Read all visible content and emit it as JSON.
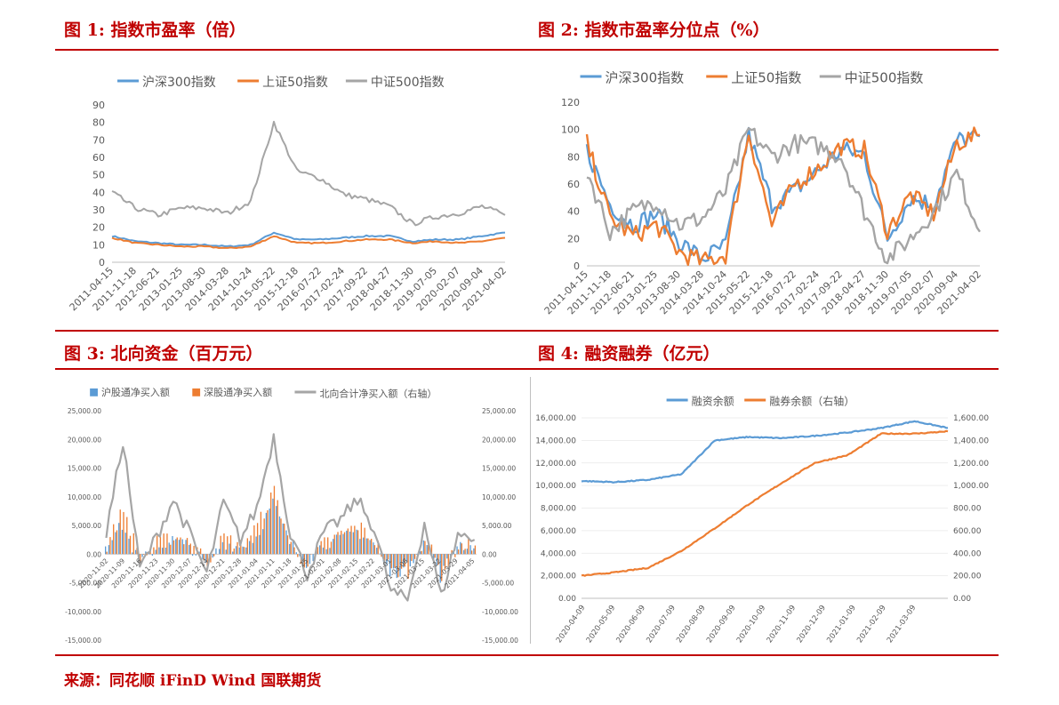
{
  "panels": [
    {
      "title": "图 1:  指数市盈率（倍）"
    },
    {
      "title": "图 2:  指数市盈率分位点（%）"
    },
    {
      "title": "图 3:  北向资金（百万元）"
    },
    {
      "title": "图 4:  融资融券（亿元）"
    }
  ],
  "source": "来源：同花顺 iFinD Wind 国联期货",
  "colors": {
    "blue": "#5b9bd5",
    "orange": "#ed7d31",
    "gray": "#a5a5a5",
    "accent": "#c00000"
  },
  "chart_data": [
    {
      "type": "line",
      "title": "",
      "xlabel": "",
      "ylabel": "",
      "ylim": [
        0,
        90
      ],
      "yticks": [
        "0",
        "10",
        "20",
        "30",
        "40",
        "50",
        "60",
        "70",
        "80",
        "90"
      ],
      "x": [
        "2011-04-15",
        "2011-11-18",
        "2012-06-21",
        "2013-01-25",
        "2013-08-30",
        "2014-03-28",
        "2014-10-24",
        "2015-05-22",
        "2015-12-18",
        "2016-07-22",
        "2017-02-24",
        "2017-09-22",
        "2018-04-27",
        "2018-11-30",
        "2019-07-05",
        "2020-02-07",
        "2020-09-04",
        "2021-04-02"
      ],
      "legend": "top",
      "series": [
        {
          "name": "沪深300指数",
          "color": "#5b9bd5",
          "values": [
            15,
            12,
            11,
            10,
            10,
            9,
            10,
            17,
            13,
            13,
            14,
            15,
            15,
            12,
            13,
            13,
            15,
            17
          ]
        },
        {
          "name": "上证50指数",
          "color": "#ed7d31",
          "values": [
            14,
            11,
            10,
            9,
            9,
            8,
            9,
            15,
            11,
            11,
            12,
            13,
            13,
            11,
            12,
            11,
            12,
            14
          ]
        },
        {
          "name": "中证500指数",
          "color": "#a5a5a5",
          "values": [
            40,
            31,
            27,
            31,
            31,
            28,
            35,
            80,
            52,
            48,
            39,
            36,
            32,
            22,
            26,
            28,
            32,
            27
          ]
        }
      ]
    },
    {
      "type": "line",
      "title": "",
      "xlabel": "",
      "ylabel": "",
      "ylim": [
        0,
        120
      ],
      "yticks": [
        "0",
        "20",
        "40",
        "60",
        "80",
        "100",
        "120"
      ],
      "x": [
        "2011-04-15",
        "2011-11-18",
        "2012-06-21",
        "2013-01-25",
        "2013-08-30",
        "2014-03-28",
        "2014-10-24",
        "2015-05-22",
        "2015-12-18",
        "2016-07-22",
        "2017-02-24",
        "2017-09-22",
        "2018-04-27",
        "2018-11-30",
        "2019-07-05",
        "2020-02-07",
        "2020-09-04",
        "2021-04-02"
      ],
      "legend": "top",
      "series": [
        {
          "name": "沪深300指数",
          "color": "#5b9bd5",
          "values": [
            85,
            45,
            30,
            38,
            18,
            5,
            15,
            96,
            45,
            55,
            70,
            85,
            82,
            20,
            50,
            45,
            92,
            95
          ]
        },
        {
          "name": "上证50指数",
          "color": "#ed7d31",
          "values": [
            90,
            35,
            22,
            30,
            10,
            3,
            8,
            98,
            30,
            60,
            72,
            88,
            85,
            25,
            52,
            38,
            90,
            96
          ]
        },
        {
          "name": "中证500指数",
          "color": "#a5a5a5",
          "values": [
            70,
            25,
            40,
            48,
            30,
            35,
            55,
            100,
            80,
            90,
            88,
            80,
            40,
            5,
            20,
            40,
            68,
            25
          ]
        }
      ]
    },
    {
      "type": "bar",
      "title": "",
      "xlabel": "",
      "ylabel": "",
      "ylim": [
        -15000,
        25000
      ],
      "y2lim": [
        -15000,
        25000
      ],
      "yticks": [
        "-15,000.00",
        "-10,000.00",
        "-5,000.00",
        "0.00",
        "5,000.00",
        "10,000.00",
        "15,000.00",
        "20,000.00",
        "25,000.00"
      ],
      "x": [
        "2020-11-02",
        "2020-11-09",
        "2020-11-16",
        "2020-11-23",
        "2020-11-30",
        "2020-12-07",
        "2020-12-14",
        "2020-12-21",
        "2020-12-28",
        "2021-01-04",
        "2021-01-11",
        "2021-01-18",
        "2021-01-25",
        "2021-02-01",
        "2021-02-08",
        "2021-02-15",
        "2021-02-22",
        "2021-03-01",
        "2021-03-08",
        "2021-03-15",
        "2021-03-22",
        "2021-03-29",
        "2021-04-05"
      ],
      "legend": "top",
      "series": [
        {
          "name": "沪股通净买入额",
          "color": "#5b9bd5",
          "kind": "bar",
          "values": [
            2000,
            5000,
            -1500,
            1000,
            2500,
            1500,
            -2000,
            2000,
            1200,
            3000,
            9000,
            2000,
            -1500,
            1800,
            2500,
            4000,
            2000,
            -3500,
            -2500,
            2500,
            -4000,
            2000,
            1000
          ]
        },
        {
          "name": "深股通净买入额",
          "color": "#ed7d31",
          "kind": "bar",
          "values": [
            1500,
            8000,
            -1000,
            2000,
            3000,
            2500,
            -1500,
            3000,
            1500,
            5000,
            11000,
            1500,
            -2000,
            2000,
            3500,
            5000,
            2500,
            -3000,
            -3000,
            3000,
            -3500,
            1500,
            1500
          ]
        },
        {
          "name": "北向合计净买入额（右轴）",
          "color": "#a5a5a5",
          "kind": "line",
          "values": [
            3500,
            19800,
            -2500,
            3000,
            9500,
            3500,
            -3500,
            9000,
            2500,
            8000,
            20500,
            3500,
            -3500,
            3800,
            6000,
            9500,
            4500,
            -6500,
            -8000,
            5500,
            -7500,
            3500,
            2500
          ]
        }
      ],
      "x_ticks_shown": [
        "2020-11-02",
        "2020-11-09",
        "2020-11-16",
        "2020-11-23",
        "2020-11-30",
        "2020-12-07",
        "2020-12-14",
        "2020-12-21",
        "2020-12-28",
        "2021-01-04",
        "2021-01-11",
        "2021-01-18",
        "2021-01-25",
        "2021-02-01",
        "2021-02-08",
        "2021-02-15",
        "2021-02-22",
        "2021-03-01",
        "2021-03-08",
        "2021-03-15",
        "2021-03-22",
        "2021-03-29",
        "2021-04-05"
      ]
    },
    {
      "type": "line",
      "title": "",
      "xlabel": "",
      "ylabel": "",
      "ylim": [
        0,
        16000
      ],
      "y2lim": [
        0,
        1600
      ],
      "yticks": [
        "0.00",
        "2,000.00",
        "4,000.00",
        "6,000.00",
        "8,000.00",
        "10,000.00",
        "12,000.00",
        "14,000.00",
        "16,000.00"
      ],
      "y2ticks": [
        "0.00",
        "200.00",
        "400.00",
        "600.00",
        "800.00",
        "1,000.00",
        "1,200.00",
        "1,400.00",
        "1,600.00"
      ],
      "x": [
        "2020-04-09",
        "2020-05-09",
        "2020-06-09",
        "2020-07-09",
        "2020-08-09",
        "2020-09-09",
        "2020-10-09",
        "2020-11-09",
        "2020-12-09",
        "2021-01-09",
        "2021-02-09",
        "2021-03-09"
      ],
      "legend": "top",
      "series": [
        {
          "name": "融资余额",
          "color": "#5b9bd5",
          "axis": "left",
          "values": [
            10400,
            10300,
            10500,
            11000,
            14000,
            14300,
            14200,
            14400,
            14700,
            15100,
            15700,
            15100
          ]
        },
        {
          "name": "融券余额（右轴）",
          "color": "#ed7d31",
          "axis": "right",
          "values": [
            200,
            230,
            270,
            420,
            620,
            830,
            1020,
            1200,
            1270,
            1460,
            1460,
            1480
          ]
        }
      ]
    }
  ]
}
